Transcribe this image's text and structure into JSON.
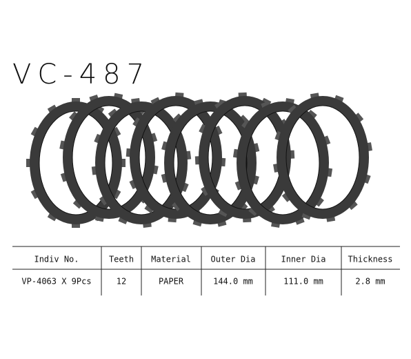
{
  "title": "VC-487",
  "table": {
    "headers": [
      "Indiv  No.",
      "Teeth",
      "Material",
      "Outer Dia",
      "Inner Dia",
      "Thickness"
    ],
    "rows": [
      [
        "VP-4063  X 9Pcs",
        "12",
        "PAPER",
        "144.0 mm",
        "111.0 mm",
        "2.8 mm"
      ]
    ]
  }
}
